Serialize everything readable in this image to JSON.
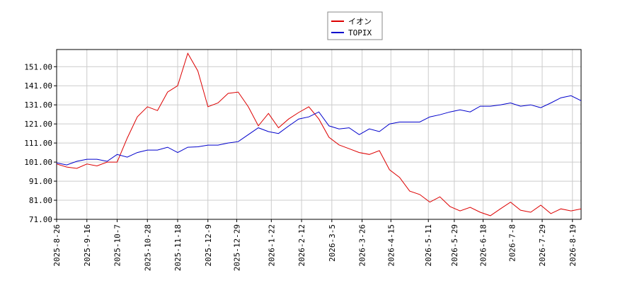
{
  "chart_data": {
    "type": "line",
    "x": [
      "2025-8-26",
      "2025-9-2",
      "2025-9-9",
      "2025-9-16",
      "2025-9-23",
      "2025-9-30",
      "2025-10-7",
      "2025-10-14",
      "2025-10-21",
      "2025-10-28",
      "2025-11-4",
      "2025-11-11",
      "2025-11-18",
      "2025-11-25",
      "2025-12-2",
      "2025-12-9",
      "2025-12-16",
      "2025-12-23",
      "2025-12-30",
      "2026-1-6",
      "2026-1-13",
      "2026-1-20",
      "2026-1-27",
      "2026-2-3",
      "2026-2-10",
      "2026-2-17",
      "2026-2-24",
      "2026-3-3",
      "2026-3-10",
      "2026-3-17",
      "2026-3-24",
      "2026-3-31",
      "2026-4-7",
      "2026-4-14",
      "2026-4-21",
      "2026-4-28",
      "2026-5-5",
      "2026-5-12",
      "2026-5-19",
      "2026-5-26",
      "2026-6-2",
      "2026-6-9",
      "2026-6-16",
      "2026-6-23",
      "2026-6-30",
      "2026-7-7",
      "2026-7-14",
      "2026-7-21",
      "2026-7-28",
      "2026-8-4",
      "2026-8-11",
      "2026-8-18",
      "2026-8-25"
    ],
    "series": [
      {
        "name": "イオン",
        "color": "#dd0000",
        "values": [
          100,
          98.4,
          97.7,
          100,
          99,
          101,
          101,
          113.6,
          124.7,
          130,
          128,
          137.7,
          141,
          158,
          148.8,
          130,
          132,
          137,
          137.7,
          130,
          120,
          126.5,
          119,
          123.6,
          127,
          130,
          123.6,
          114,
          110,
          108,
          106,
          105,
          107,
          97,
          93,
          85.8,
          84,
          80,
          82.8,
          77.7,
          75.4,
          77.3,
          74.7,
          72.9,
          76.5,
          80,
          75.8,
          74.7,
          78.4,
          74,
          76.5,
          75.4,
          76.5
        ]
      },
      {
        "name": "TOPIX",
        "color": "#0000cc",
        "values": [
          100.6,
          99.5,
          101.4,
          102.5,
          102.5,
          101.4,
          105,
          103.6,
          106,
          107.3,
          107.3,
          108.8,
          106,
          108.8,
          109,
          109.9,
          109.9,
          111,
          111.7,
          115.4,
          119,
          117,
          116,
          119.9,
          123.6,
          124.7,
          127.3,
          120,
          118.4,
          119,
          115.4,
          118.4,
          117,
          121,
          122,
          122,
          122,
          124.7,
          125.8,
          127.3,
          128.4,
          127.3,
          130.3,
          130.3,
          131,
          132,
          130.3,
          131,
          129.5,
          132,
          134.7,
          135.8,
          133.2
        ]
      }
    ],
    "xlim": [
      "2025-8-26",
      "2026-8-25"
    ],
    "xticks": [
      "2025-8-26",
      "2025-9-16",
      "2025-10-7",
      "2025-10-28",
      "2025-11-18",
      "2025-12-9",
      "2025-12-29",
      "2026-1-22",
      "2026-2-12",
      "2026-3-5",
      "2026-3-26",
      "2026-4-15",
      "2026-5-11",
      "2026-5-29",
      "2026-6-18",
      "2026-7-8",
      "2026-7-29",
      "2026-8-19"
    ],
    "ylim": [
      71,
      160
    ],
    "yticks": [
      {
        "value": 71,
        "label": "71.00"
      },
      {
        "value": 81,
        "label": "81.00"
      },
      {
        "value": 91,
        "label": "91.00"
      },
      {
        "value": 101,
        "label": "101.00"
      },
      {
        "value": 111,
        "label": "111.00"
      },
      {
        "value": 121,
        "label": "121.00"
      },
      {
        "value": 131,
        "label": "131.00"
      },
      {
        "value": 141,
        "label": "141.00"
      },
      {
        "value": 151,
        "label": "151.00"
      }
    ],
    "grid": true
  }
}
